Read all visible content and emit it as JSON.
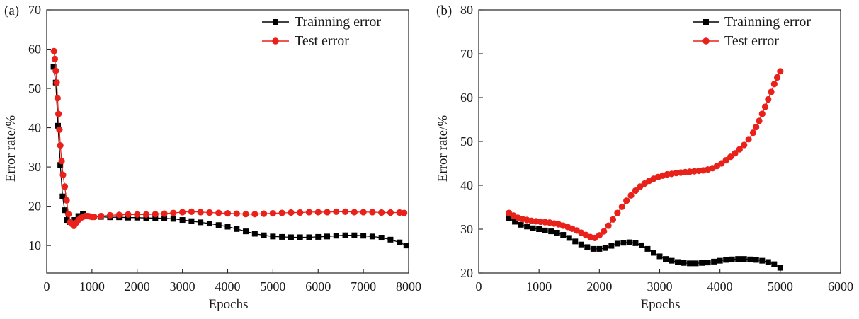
{
  "chart_data": [
    {
      "type": "line",
      "panel_label": "(a)",
      "xlabel": "Epochs",
      "ylabel": "Error rate/%",
      "xlim": [
        0,
        8000
      ],
      "ylim": [
        3,
        70
      ],
      "xticks": [
        0,
        1000,
        2000,
        3000,
        4000,
        5000,
        6000,
        7000,
        8000
      ],
      "yticks": [
        10,
        20,
        30,
        40,
        50,
        60,
        70
      ],
      "grid": false,
      "legend_position": "top-right",
      "series": [
        {
          "name": "Trainning error",
          "color": "#000000",
          "marker": "square",
          "x": [
            150,
            200,
            250,
            300,
            350,
            400,
            450,
            500,
            600,
            700,
            800,
            900,
            1000,
            1200,
            1400,
            1600,
            1800,
            2000,
            2200,
            2400,
            2600,
            2800,
            3000,
            3200,
            3400,
            3600,
            3800,
            4000,
            4200,
            4400,
            4600,
            4800,
            5000,
            5200,
            5400,
            5600,
            5800,
            6000,
            6200,
            6400,
            6600,
            6800,
            7000,
            7200,
            7400,
            7600,
            7800,
            7950
          ],
          "y": [
            55.5,
            51.5,
            40.5,
            30.5,
            22.5,
            19.0,
            16.5,
            16.0,
            16.5,
            17.5,
            18.0,
            17.5,
            17.4,
            17.3,
            17.2,
            17.2,
            17.1,
            17.1,
            17.0,
            17.0,
            16.9,
            16.8,
            16.5,
            16.2,
            15.9,
            15.6,
            15.2,
            14.8,
            14.2,
            13.6,
            13.0,
            12.6,
            12.3,
            12.2,
            12.1,
            12.1,
            12.1,
            12.2,
            12.3,
            12.5,
            12.6,
            12.6,
            12.5,
            12.3,
            12.0,
            11.5,
            10.8,
            10.0
          ]
        },
        {
          "name": "Test error",
          "color": "#e8211a",
          "marker": "circle",
          "x": [
            160,
            180,
            200,
            220,
            240,
            260,
            280,
            300,
            330,
            360,
            400,
            440,
            480,
            520,
            560,
            600,
            650,
            700,
            750,
            800,
            850,
            900,
            950,
            1000,
            1050,
            1200,
            1400,
            1600,
            1800,
            2000,
            2200,
            2400,
            2600,
            2800,
            3000,
            3200,
            3400,
            3600,
            3800,
            4000,
            4200,
            4400,
            4600,
            4800,
            5000,
            5200,
            5400,
            5600,
            5800,
            6000,
            6200,
            6400,
            6600,
            6800,
            7000,
            7200,
            7400,
            7600,
            7800,
            7900
          ],
          "y": [
            59.5,
            57.5,
            54.5,
            51.5,
            47.5,
            43.5,
            39.5,
            35.5,
            31.5,
            28.0,
            25.0,
            21.5,
            18.0,
            16.0,
            15.5,
            15.0,
            15.8,
            16.5,
            17.0,
            17.3,
            17.5,
            17.5,
            17.4,
            17.3,
            17.3,
            17.5,
            17.7,
            17.8,
            17.9,
            17.9,
            17.9,
            18.0,
            18.1,
            18.3,
            18.5,
            18.6,
            18.5,
            18.4,
            18.3,
            18.2,
            18.1,
            18.0,
            18.0,
            18.1,
            18.2,
            18.3,
            18.4,
            18.4,
            18.5,
            18.5,
            18.5,
            18.6,
            18.6,
            18.5,
            18.5,
            18.5,
            18.4,
            18.4,
            18.4,
            18.3
          ]
        }
      ]
    },
    {
      "type": "line",
      "panel_label": "(b)",
      "xlabel": "Epochs",
      "ylabel": "Error rate/%",
      "xlim": [
        0,
        6000
      ],
      "ylim": [
        20,
        80
      ],
      "xticks": [
        0,
        1000,
        2000,
        3000,
        4000,
        5000,
        6000
      ],
      "yticks": [
        20,
        30,
        40,
        50,
        60,
        70,
        80
      ],
      "grid": false,
      "legend_position": "top-right",
      "series": [
        {
          "name": "Trainning error",
          "color": "#000000",
          "marker": "square",
          "x": [
            500,
            600,
            700,
            800,
            900,
            1000,
            1100,
            1200,
            1300,
            1400,
            1500,
            1600,
            1700,
            1800,
            1900,
            2000,
            2100,
            2200,
            2300,
            2400,
            2500,
            2600,
            2700,
            2800,
            2900,
            3000,
            3100,
            3200,
            3300,
            3400,
            3500,
            3600,
            3700,
            3800,
            3900,
            4000,
            4100,
            4200,
            4300,
            4400,
            4500,
            4600,
            4700,
            4800,
            4900,
            5000
          ],
          "y": [
            32.5,
            31.7,
            31.0,
            30.6,
            30.2,
            30.0,
            29.7,
            29.5,
            29.2,
            28.7,
            28.0,
            27.2,
            26.5,
            25.9,
            25.5,
            25.5,
            25.7,
            26.2,
            26.7,
            26.9,
            27.0,
            26.8,
            26.3,
            25.5,
            24.6,
            23.8,
            23.2,
            22.8,
            22.5,
            22.3,
            22.2,
            22.2,
            22.3,
            22.4,
            22.6,
            22.8,
            23.0,
            23.1,
            23.2,
            23.2,
            23.1,
            23.0,
            22.8,
            22.5,
            22.0,
            21.2
          ]
        },
        {
          "name": "Test error",
          "color": "#e8211a",
          "marker": "circle",
          "x": [
            500,
            575,
            650,
            725,
            800,
            875,
            950,
            1025,
            1100,
            1175,
            1250,
            1325,
            1400,
            1475,
            1550,
            1625,
            1700,
            1775,
            1850,
            1925,
            2000,
            2075,
            2150,
            2225,
            2300,
            2375,
            2450,
            2525,
            2600,
            2675,
            2750,
            2825,
            2900,
            2975,
            3050,
            3125,
            3200,
            3275,
            3350,
            3425,
            3500,
            3575,
            3650,
            3725,
            3800,
            3875,
            3950,
            4025,
            4100,
            4175,
            4250,
            4325,
            4400,
            4475,
            4550,
            4600,
            4650,
            4700,
            4750,
            4800,
            4850,
            4900,
            4950,
            5000
          ],
          "y": [
            33.7,
            33.1,
            32.6,
            32.3,
            32.1,
            31.9,
            31.8,
            31.7,
            31.6,
            31.5,
            31.3,
            31.1,
            30.8,
            30.5,
            30.1,
            29.7,
            29.2,
            28.7,
            28.2,
            28.0,
            28.6,
            29.5,
            30.8,
            32.2,
            33.7,
            35.1,
            36.5,
            37.7,
            38.8,
            39.7,
            40.4,
            41.0,
            41.5,
            41.9,
            42.2,
            42.5,
            42.6,
            42.8,
            42.9,
            43.0,
            43.1,
            43.2,
            43.3,
            43.4,
            43.6,
            43.9,
            44.4,
            45.0,
            45.7,
            46.5,
            47.3,
            48.2,
            49.2,
            50.5,
            52.0,
            53.3,
            54.7,
            56.3,
            57.9,
            59.6,
            61.3,
            63.1,
            64.6,
            66.0
          ]
        }
      ]
    }
  ]
}
